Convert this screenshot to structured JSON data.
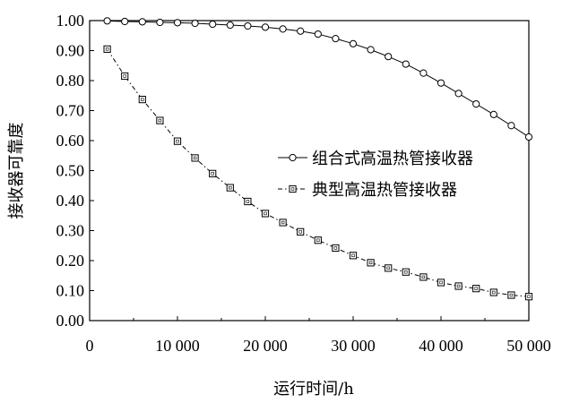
{
  "chart_data": {
    "type": "line",
    "title": "",
    "xlabel": "运行时间/h",
    "ylabel": "接收器可靠度",
    "xlim": [
      0,
      50000
    ],
    "ylim": [
      0,
      1.0
    ],
    "grid": false,
    "legend_position": "center-right",
    "x_ticks": [
      0,
      10000,
      20000,
      30000,
      40000,
      50000
    ],
    "x_tick_labels": [
      "0",
      "10 000",
      "20 000",
      "30 000",
      "40 000",
      "50 000"
    ],
    "y_ticks": [
      0,
      0.1,
      0.2,
      0.3,
      0.4,
      0.5,
      0.6,
      0.7,
      0.8,
      0.9,
      1.0
    ],
    "y_tick_labels": [
      "0.00",
      "0.10",
      "0.20",
      "0.30",
      "0.40",
      "0.50",
      "0.60",
      "0.70",
      "0.80",
      "0.90",
      "1.00"
    ],
    "series": [
      {
        "name": "组合式高温热管接收器",
        "marker": "circle",
        "line_style": "solid",
        "x": [
          2000,
          4000,
          6000,
          8000,
          10000,
          12000,
          14000,
          16000,
          18000,
          20000,
          22000,
          24000,
          26000,
          28000,
          30000,
          32000,
          34000,
          36000,
          38000,
          40000,
          42000,
          44000,
          46000,
          48000,
          50000
        ],
        "values": [
          0.999,
          0.997,
          0.996,
          0.994,
          0.993,
          0.991,
          0.988,
          0.985,
          0.982,
          0.978,
          0.972,
          0.965,
          0.955,
          0.94,
          0.923,
          0.903,
          0.88,
          0.855,
          0.825,
          0.792,
          0.757,
          0.722,
          0.687,
          0.65,
          0.612
        ]
      },
      {
        "name": "典型高温热管接收器",
        "marker": "square",
        "line_style": "dash-dot",
        "x": [
          2000,
          4000,
          6000,
          8000,
          10000,
          12000,
          14000,
          16000,
          18000,
          20000,
          22000,
          24000,
          26000,
          28000,
          30000,
          32000,
          34000,
          36000,
          38000,
          40000,
          42000,
          44000,
          46000,
          48000,
          50000
        ],
        "values": [
          0.905,
          0.815,
          0.737,
          0.667,
          0.598,
          0.542,
          0.49,
          0.443,
          0.397,
          0.357,
          0.327,
          0.296,
          0.268,
          0.242,
          0.217,
          0.193,
          0.175,
          0.162,
          0.145,
          0.127,
          0.115,
          0.107,
          0.094,
          0.085,
          0.08
        ]
      }
    ]
  }
}
